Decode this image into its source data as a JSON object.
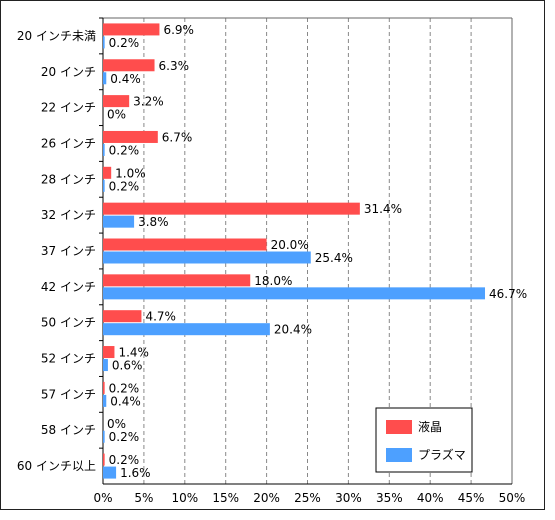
{
  "chart_data": {
    "type": "bar",
    "orientation": "horizontal",
    "categories": [
      "20 インチ未満",
      "20 インチ",
      "22 インチ",
      "26 インチ",
      "28 インチ",
      "32 インチ",
      "37 インチ",
      "42 インチ",
      "50 インチ",
      "52 インチ",
      "57 インチ",
      "58 インチ",
      "60 インチ以上"
    ],
    "series": [
      {
        "name": "液晶",
        "color": "#ff4d4d",
        "values": [
          6.9,
          6.3,
          3.2,
          6.7,
          1.0,
          31.4,
          20.0,
          18.0,
          4.7,
          1.4,
          0.2,
          0,
          0.2
        ],
        "labels": [
          "6.9%",
          "6.3%",
          "3.2%",
          "6.7%",
          "1.0%",
          "31.4%",
          "20.0%",
          "18.0%",
          "4.7%",
          "1.4%",
          "0.2%",
          "0%",
          "0.2%"
        ]
      },
      {
        "name": "プラズマ",
        "color": "#4da0ff",
        "values": [
          0.2,
          0.4,
          0,
          0.2,
          0.2,
          3.8,
          25.4,
          46.7,
          20.4,
          0.6,
          0.4,
          0.2,
          1.6
        ],
        "labels": [
          "0.2%",
          "0.4%",
          "0%",
          "0.2%",
          "0.2%",
          "3.8%",
          "25.4%",
          "46.7%",
          "20.4%",
          "0.6%",
          "0.4%",
          "0.2%",
          "1.6%"
        ]
      }
    ],
    "xlim": [
      0,
      50
    ],
    "xticks": [
      0,
      5,
      10,
      15,
      20,
      25,
      30,
      35,
      40,
      45,
      50
    ],
    "xtick_labels": [
      "0%",
      "5%",
      "10%",
      "15%",
      "20%",
      "25%",
      "30%",
      "35%",
      "40%",
      "45%",
      "50%"
    ],
    "grid": "vertical-dashed",
    "legend_position": "bottom-right",
    "title": "",
    "xlabel": "",
    "ylabel": ""
  }
}
